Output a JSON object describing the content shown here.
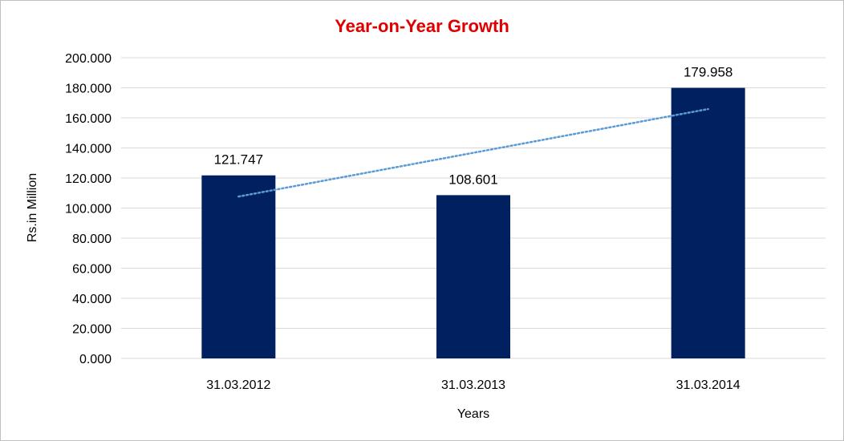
{
  "chart_data": {
    "type": "bar",
    "title": "Year-on-Year Growth",
    "xlabel": "Years",
    "ylabel": "Rs.in Million",
    "categories": [
      "31.03.2012",
      "31.03.2013",
      "31.03.2014"
    ],
    "values": [
      121.747,
      108.601,
      179.958
    ],
    "data_labels": [
      "121.747",
      "108.601",
      "179.958"
    ],
    "ylim": [
      0,
      200
    ],
    "ytick_values": [
      0,
      20,
      40,
      60,
      80,
      100,
      120,
      140,
      160,
      180,
      200
    ],
    "ytick_labels": [
      "0.000",
      "20.000",
      "40.000",
      "60.000",
      "80.000",
      "100.000",
      "120.000",
      "140.000",
      "160.000",
      "180.000",
      "200.000"
    ],
    "trendline": {
      "type": "linear",
      "style": "dotted"
    },
    "grid": true,
    "legend": "none",
    "colors": {
      "bar": "#002060",
      "trendline": "#5b9bd5",
      "title": "#e00000",
      "grid": "#d9d9d9"
    }
  }
}
